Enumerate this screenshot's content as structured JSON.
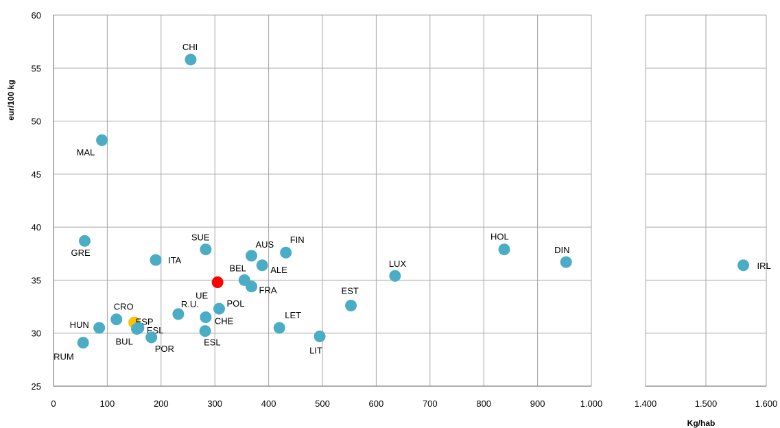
{
  "chart_data": {
    "type": "scatter",
    "xlabel": "Kg/hab",
    "ylabel": "eur/100 kg",
    "ylim": [
      25,
      60
    ],
    "x_ticks_left": [
      "0",
      "100",
      "200",
      "300",
      "400",
      "500",
      "600",
      "700",
      "800",
      "900",
      "1.000"
    ],
    "x_ticks_right": [
      "1.400",
      "1.500",
      "1.600"
    ],
    "y_ticks": [
      "25",
      "30",
      "35",
      "40",
      "45",
      "50",
      "55",
      "60"
    ],
    "x_axis_segments": [
      [
        0,
        1000
      ],
      [
        1400,
        1600
      ]
    ],
    "grid": true,
    "colors": {
      "default": "#4bacc6",
      "highlight_red": "#ff0000",
      "highlight_yellow": "#ffc000"
    },
    "points": [
      {
        "label": "CHI",
        "x": 255,
        "y": 55.8,
        "color": "default"
      },
      {
        "label": "MAL",
        "x": 90,
        "y": 48.2,
        "color": "default"
      },
      {
        "label": "GRE",
        "x": 58,
        "y": 38.7,
        "color": "default"
      },
      {
        "label": "SUE",
        "x": 283,
        "y": 37.9,
        "color": "default"
      },
      {
        "label": "ITA",
        "x": 190,
        "y": 36.9,
        "color": "default"
      },
      {
        "label": "AUS",
        "x": 368,
        "y": 37.3,
        "color": "default"
      },
      {
        "label": "FIN",
        "x": 432,
        "y": 37.6,
        "color": "default"
      },
      {
        "label": "ALE",
        "x": 388,
        "y": 36.4,
        "color": "default"
      },
      {
        "label": "BEL",
        "x": 355,
        "y": 35.0,
        "color": "default"
      },
      {
        "label": "FRA",
        "x": 368,
        "y": 34.4,
        "color": "default"
      },
      {
        "label": "UE",
        "x": 305,
        "y": 34.8,
        "color": "highlight_red"
      },
      {
        "label": "POL",
        "x": 308,
        "y": 32.3,
        "color": "default"
      },
      {
        "label": "CHE",
        "x": 283,
        "y": 31.5,
        "color": "default"
      },
      {
        "label": "R.U.",
        "x": 232,
        "y": 31.8,
        "color": "default"
      },
      {
        "label": "ESL",
        "x": 282,
        "y": 30.2,
        "color": "default"
      },
      {
        "label": "CRO",
        "x": 117,
        "y": 31.3,
        "color": "default"
      },
      {
        "label": "ESP",
        "x": 150,
        "y": 31.0,
        "color": "highlight_yellow"
      },
      {
        "label": "ESL",
        "x": 158,
        "y": 30.5,
        "color": "default"
      },
      {
        "label": "BUL",
        "x": 155,
        "y": 30.4,
        "color": "default"
      },
      {
        "label": "POR",
        "x": 182,
        "y": 29.6,
        "color": "default"
      },
      {
        "label": "HUN",
        "x": 85,
        "y": 30.5,
        "color": "default"
      },
      {
        "label": "RUM",
        "x": 55,
        "y": 29.1,
        "color": "default"
      },
      {
        "label": "LET",
        "x": 420,
        "y": 30.5,
        "color": "default"
      },
      {
        "label": "LIT",
        "x": 495,
        "y": 29.7,
        "color": "default"
      },
      {
        "label": "EST",
        "x": 553,
        "y": 32.6,
        "color": "default"
      },
      {
        "label": "LUX",
        "x": 635,
        "y": 35.4,
        "color": "default"
      },
      {
        "label": "HOL",
        "x": 838,
        "y": 37.9,
        "color": "default"
      },
      {
        "label": "DIN",
        "x": 953,
        "y": 36.7,
        "color": "default"
      },
      {
        "label": "IRL",
        "x": 1562,
        "y": 36.4,
        "color": "default"
      }
    ]
  }
}
